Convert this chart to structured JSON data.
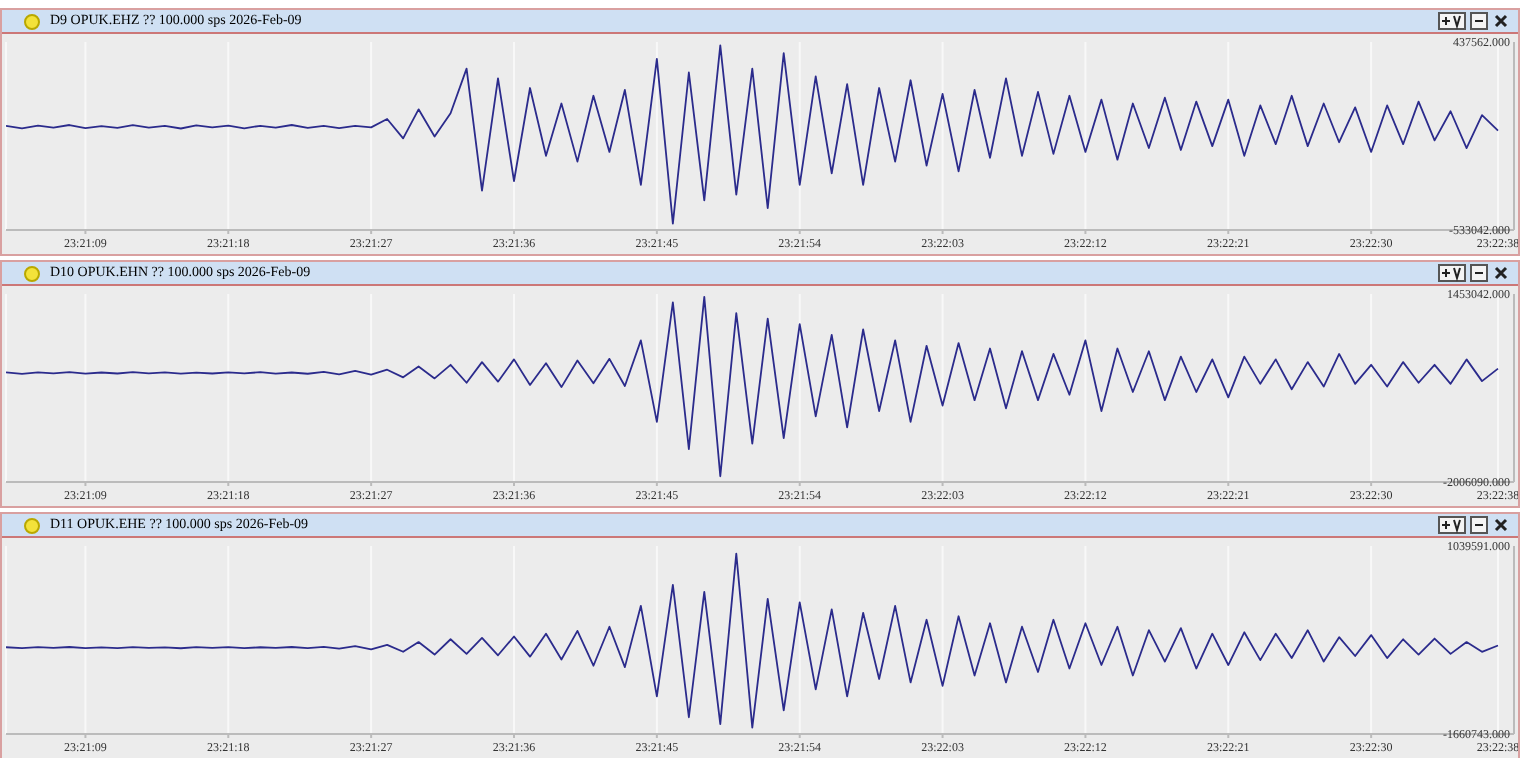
{
  "chart_data": [
    {
      "type": "line",
      "title": "D9  OPUK.EHZ ?? 100.000 sps 2026-Feb-09",
      "grid": "x",
      "marker": "none",
      "line_style": "solid",
      "x": [
        23.35111,
        23.35139,
        23.35167,
        23.35194,
        23.35222,
        23.3525,
        23.35278,
        23.35306,
        23.35333,
        23.35361,
        23.35389,
        23.35417,
        23.35444,
        23.35472,
        23.355,
        23.35528,
        23.35556,
        23.35583,
        23.35611,
        23.35639,
        23.35667,
        23.35694,
        23.35722,
        23.3575,
        23.35778,
        23.35806,
        23.35833,
        23.35861,
        23.35889,
        23.35917,
        23.35944,
        23.35972,
        23.36,
        23.36028,
        23.36056,
        23.36083,
        23.36111,
        23.36139,
        23.36167,
        23.36194,
        23.36222,
        23.3625,
        23.36278,
        23.36306,
        23.36333,
        23.36361,
        23.36389,
        23.36417,
        23.36444,
        23.36472,
        23.365,
        23.36528,
        23.36556,
        23.36583,
        23.36611,
        23.36639,
        23.36667,
        23.36694,
        23.36722,
        23.3675,
        23.36778,
        23.36806,
        23.36833,
        23.36861,
        23.36889,
        23.36917,
        23.36944,
        23.36972,
        23.37,
        23.37028,
        23.37056,
        23.37083,
        23.37111,
        23.37139,
        23.37167,
        23.37194,
        23.37222,
        23.3725,
        23.37278,
        23.37306,
        23.37333,
        23.37361,
        23.37389,
        23.37417,
        23.37444,
        23.37472,
        23.375,
        23.37528,
        23.37556,
        23.37583,
        23.37611,
        23.37639,
        23.37667,
        23.37694,
        23.37722
      ],
      "series": [
        {
          "color": "#2b2b8c",
          "values": [
            5000,
            -8000,
            6000,
            -4000,
            9000,
            -7000,
            3000,
            -6000,
            8000,
            -5000,
            4000,
            -9000,
            7000,
            -3000,
            6000,
            -8000,
            5000,
            -4000,
            9000,
            -6000,
            4000,
            -7000,
            5000,
            -3000,
            40000,
            -60000,
            90000,
            -50000,
            70000,
            300000,
            -330000,
            250000,
            -280000,
            200000,
            -150000,
            120000,
            -180000,
            160000,
            -130000,
            190000,
            -300000,
            350000,
            -500000,
            280000,
            -380000,
            420000,
            -350000,
            300000,
            -420000,
            380000,
            -300000,
            260000,
            -240000,
            220000,
            -300000,
            200000,
            -180000,
            240000,
            -200000,
            170000,
            -230000,
            190000,
            -160000,
            250000,
            -150000,
            180000,
            -140000,
            160000,
            -130000,
            140000,
            -170000,
            120000,
            -110000,
            150000,
            -120000,
            130000,
            -100000,
            140000,
            -150000,
            110000,
            -90000,
            160000,
            -100000,
            120000,
            -80000,
            100000,
            -130000,
            110000,
            -90000,
            130000,
            -70000,
            80000,
            -110000,
            60000,
            -20000
          ]
        }
      ],
      "xlim": [
        23.35111,
        23.3775
      ],
      "xticks": [
        {
          "value": 23.3525,
          "label": "23:21:09"
        },
        {
          "value": 23.355,
          "label": "23:21:18"
        },
        {
          "value": 23.3575,
          "label": "23:21:27"
        },
        {
          "value": 23.36,
          "label": "23:21:36"
        },
        {
          "value": 23.3625,
          "label": "23:21:45"
        },
        {
          "value": 23.365,
          "label": "23:21:54"
        },
        {
          "value": 23.3675,
          "label": "23:22:03"
        },
        {
          "value": 23.37,
          "label": "23:22:12"
        },
        {
          "value": 23.3725,
          "label": "23:22:21"
        },
        {
          "value": 23.375,
          "label": "23:22:30"
        },
        {
          "value": 23.37722,
          "label": "23:22:38"
        }
      ],
      "ylim": [
        -533042,
        437562
      ],
      "yticks": [
        {
          "value": -533042,
          "label": "-533042.000"
        },
        {
          "value": 437562,
          "label": "437562.000"
        }
      ]
    },
    {
      "type": "line",
      "title": "D10  OPUK.EHN ?? 100.000 sps 2026-Feb-09",
      "grid": "x",
      "marker": "none",
      "line_style": "solid",
      "x": [
        23.35111,
        23.35139,
        23.35167,
        23.35194,
        23.35222,
        23.3525,
        23.35278,
        23.35306,
        23.35333,
        23.35361,
        23.35389,
        23.35417,
        23.35444,
        23.35472,
        23.355,
        23.35528,
        23.35556,
        23.35583,
        23.35611,
        23.35639,
        23.35667,
        23.35694,
        23.35722,
        23.3575,
        23.35778,
        23.35806,
        23.35833,
        23.35861,
        23.35889,
        23.35917,
        23.35944,
        23.35972,
        23.36,
        23.36028,
        23.36056,
        23.36083,
        23.36111,
        23.36139,
        23.36167,
        23.36194,
        23.36222,
        23.3625,
        23.36278,
        23.36306,
        23.36333,
        23.36361,
        23.36389,
        23.36417,
        23.36444,
        23.36472,
        23.365,
        23.36528,
        23.36556,
        23.36583,
        23.36611,
        23.36639,
        23.36667,
        23.36694,
        23.36722,
        23.3675,
        23.36778,
        23.36806,
        23.36833,
        23.36861,
        23.36889,
        23.36917,
        23.36944,
        23.36972,
        23.37,
        23.37028,
        23.37056,
        23.37083,
        23.37111,
        23.37139,
        23.37167,
        23.37194,
        23.37222,
        23.3725,
        23.37278,
        23.37306,
        23.37333,
        23.37361,
        23.37389,
        23.37417,
        23.37444,
        23.37472,
        23.375,
        23.37528,
        23.37556,
        23.37583,
        23.37611,
        23.37639,
        23.37667,
        23.37694,
        23.37722
      ],
      "series": [
        {
          "color": "#2b2b8c",
          "values": [
            10000,
            -15000,
            12000,
            -8000,
            15000,
            -12000,
            9000,
            -10000,
            14000,
            -9000,
            11000,
            -13000,
            8000,
            -10000,
            12000,
            -9000,
            15000,
            -11000,
            9000,
            -14000,
            20000,
            -25000,
            40000,
            -30000,
            60000,
            -80000,
            120000,
            -100000,
            150000,
            -180000,
            200000,
            -160000,
            250000,
            -220000,
            180000,
            -260000,
            230000,
            -190000,
            260000,
            -240000,
            600000,
            -900000,
            1300000,
            -1400000,
            1400000,
            -1900000,
            1100000,
            -1300000,
            1000000,
            -1200000,
            900000,
            -800000,
            700000,
            -1000000,
            800000,
            -700000,
            600000,
            -900000,
            500000,
            -600000,
            550000,
            -500000,
            450000,
            -650000,
            400000,
            -500000,
            350000,
            -400000,
            600000,
            -700000,
            450000,
            -350000,
            400000,
            -500000,
            300000,
            -350000,
            250000,
            -450000,
            300000,
            -200000,
            250000,
            -300000,
            200000,
            -250000,
            350000,
            -200000,
            150000,
            -250000,
            200000,
            -180000,
            150000,
            -200000,
            250000,
            -150000,
            80000
          ]
        }
      ],
      "xlim": [
        23.35111,
        23.3775
      ],
      "xticks": [
        {
          "value": 23.3525,
          "label": "23:21:09"
        },
        {
          "value": 23.355,
          "label": "23:21:18"
        },
        {
          "value": 23.3575,
          "label": "23:21:27"
        },
        {
          "value": 23.36,
          "label": "23:21:36"
        },
        {
          "value": 23.3625,
          "label": "23:21:45"
        },
        {
          "value": 23.365,
          "label": "23:21:54"
        },
        {
          "value": 23.3675,
          "label": "23:22:03"
        },
        {
          "value": 23.37,
          "label": "23:22:12"
        },
        {
          "value": 23.3725,
          "label": "23:22:21"
        },
        {
          "value": 23.375,
          "label": "23:22:30"
        },
        {
          "value": 23.37722,
          "label": "23:22:38"
        }
      ],
      "ylim": [
        -2006090,
        1453042
      ],
      "yticks": [
        {
          "value": -2006090,
          "label": "-2006090.000"
        },
        {
          "value": 1453042,
          "label": "1453042.000"
        }
      ]
    },
    {
      "type": "line",
      "title": "D11  OPUK.EHE ?? 100.000 sps 2026-Feb-09",
      "grid": "x",
      "marker": "none",
      "line_style": "solid",
      "x": [
        23.35111,
        23.35139,
        23.35167,
        23.35194,
        23.35222,
        23.3525,
        23.35278,
        23.35306,
        23.35333,
        23.35361,
        23.35389,
        23.35417,
        23.35444,
        23.35472,
        23.355,
        23.35528,
        23.35556,
        23.35583,
        23.35611,
        23.35639,
        23.35667,
        23.35694,
        23.35722,
        23.3575,
        23.35778,
        23.35806,
        23.35833,
        23.35861,
        23.35889,
        23.35917,
        23.35944,
        23.35972,
        23.36,
        23.36028,
        23.36056,
        23.36083,
        23.36111,
        23.36139,
        23.36167,
        23.36194,
        23.36222,
        23.3625,
        23.36278,
        23.36306,
        23.36333,
        23.36361,
        23.36389,
        23.36417,
        23.36444,
        23.36472,
        23.365,
        23.36528,
        23.36556,
        23.36583,
        23.36611,
        23.36639,
        23.36667,
        23.36694,
        23.36722,
        23.3675,
        23.36778,
        23.36806,
        23.36833,
        23.36861,
        23.36889,
        23.36917,
        23.36944,
        23.36972,
        23.37,
        23.37028,
        23.37056,
        23.37083,
        23.37111,
        23.37139,
        23.37167,
        23.37194,
        23.37222,
        23.3725,
        23.37278,
        23.37306,
        23.37333,
        23.37361,
        23.37389,
        23.37417,
        23.37444,
        23.37472,
        23.375,
        23.37528,
        23.37556,
        23.37583,
        23.37611,
        23.37639,
        23.37667,
        23.37694,
        23.37722
      ],
      "series": [
        {
          "color": "#2b2b8c",
          "values": [
            -415000,
            -428000,
            -414000,
            -425000,
            -411000,
            -427000,
            -416000,
            -426000,
            -412000,
            -425000,
            -416000,
            -429000,
            -413000,
            -423000,
            -414000,
            -428000,
            -415000,
            -424000,
            -411000,
            -426000,
            -410000,
            -435000,
            -400000,
            -445000,
            -380000,
            -480000,
            -340000,
            -520000,
            -300000,
            -510000,
            -280000,
            -530000,
            -260000,
            -550000,
            -220000,
            -590000,
            -180000,
            -680000,
            -120000,
            -700000,
            180000,
            -1120000,
            480000,
            -1420000,
            380000,
            -1520000,
            930000,
            -1570000,
            280000,
            -1320000,
            230000,
            -1020000,
            130000,
            -1120000,
            80000,
            -870000,
            180000,
            -920000,
            -20000,
            -970000,
            30000,
            -820000,
            -70000,
            -920000,
            -120000,
            -770000,
            -20000,
            -720000,
            -70000,
            -670000,
            -120000,
            -820000,
            -170000,
            -620000,
            -140000,
            -720000,
            -220000,
            -670000,
            -200000,
            -600000,
            -220000,
            -570000,
            -170000,
            -620000,
            -270000,
            -540000,
            -240000,
            -570000,
            -300000,
            -520000,
            -290000,
            -510000,
            -340000,
            -480000,
            -390000
          ]
        }
      ],
      "xlim": [
        23.35111,
        23.3775
      ],
      "xticks": [
        {
          "value": 23.3525,
          "label": "23:21:09"
        },
        {
          "value": 23.355,
          "label": "23:21:18"
        },
        {
          "value": 23.3575,
          "label": "23:21:27"
        },
        {
          "value": 23.36,
          "label": "23:21:36"
        },
        {
          "value": 23.3625,
          "label": "23:21:45"
        },
        {
          "value": 23.365,
          "label": "23:21:54"
        },
        {
          "value": 23.3675,
          "label": "23:22:03"
        },
        {
          "value": 23.37,
          "label": "23:22:12"
        },
        {
          "value": 23.3725,
          "label": "23:22:21"
        },
        {
          "value": 23.375,
          "label": "23:22:30"
        },
        {
          "value": 23.37722,
          "label": "23:22:38"
        }
      ],
      "ylim": [
        -1660743,
        1039591
      ],
      "yticks": [
        {
          "value": -1660743,
          "label": "-1660743.000"
        },
        {
          "value": 1039591,
          "label": "1039591.000"
        }
      ]
    }
  ]
}
